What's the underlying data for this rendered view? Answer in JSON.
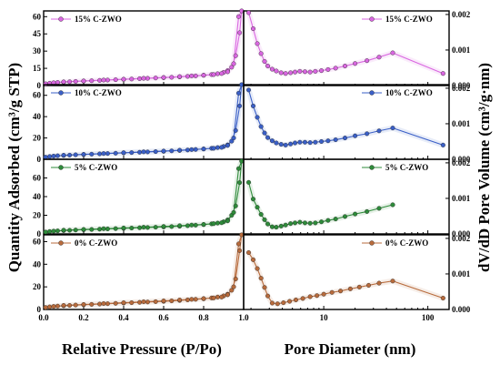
{
  "figure": {
    "left_ylabel": "Quantity Adsorbed (cm³/g STP)",
    "right_ylabel": "dV/dD Pore Volume (cm³/g·nm)",
    "left_xlabel": "Relative Pressure (P/Po)",
    "right_xlabel": "Pore Diameter (nm)"
  },
  "chart_data": [
    {
      "type": "line",
      "panel": "isotherm",
      "row": 0,
      "series": [
        {
          "name": "15% C-ZWO",
          "color": "#d966e0",
          "x": [
            0.01,
            0.03,
            0.05,
            0.07,
            0.1,
            0.13,
            0.16,
            0.2,
            0.24,
            0.28,
            0.32,
            0.36,
            0.4,
            0.44,
            0.48,
            0.52,
            0.56,
            0.6,
            0.64,
            0.68,
            0.72,
            0.76,
            0.8,
            0.84,
            0.87,
            0.9,
            0.92,
            0.94,
            0.96,
            0.98,
            0.99,
            0.975,
            0.95,
            0.92,
            0.89,
            0.85,
            0.8,
            0.74,
            0.68,
            0.6,
            0.5,
            0.4,
            0.3,
            0.2,
            0.1
          ],
          "y": [
            1.5,
            2,
            2.4,
            2.7,
            3,
            3.3,
            3.6,
            3.9,
            4.2,
            4.5,
            4.8,
            5.1,
            5.4,
            5.7,
            6,
            6.3,
            6.6,
            6.9,
            7.2,
            7.6,
            8,
            8.4,
            9,
            9.6,
            10.3,
            11.5,
            13,
            16,
            26,
            46,
            65,
            60,
            19,
            12,
            10.5,
            9.6,
            9,
            8.4,
            7.8,
            7,
            6.3,
            5.5,
            4.8,
            4,
            3.2
          ]
        }
      ],
      "xlim": [
        0,
        1.0
      ],
      "ylim": [
        0,
        65
      ],
      "yticks": [
        0,
        15,
        30,
        45,
        60
      ]
    },
    {
      "type": "line",
      "panel": "isotherm",
      "row": 1,
      "series": [
        {
          "name": "10% C-ZWO",
          "color": "#3a5fc7",
          "x": [
            0.01,
            0.03,
            0.05,
            0.07,
            0.1,
            0.13,
            0.16,
            0.2,
            0.24,
            0.28,
            0.32,
            0.36,
            0.4,
            0.44,
            0.48,
            0.52,
            0.56,
            0.6,
            0.64,
            0.68,
            0.72,
            0.76,
            0.8,
            0.84,
            0.87,
            0.9,
            0.92,
            0.94,
            0.96,
            0.98,
            0.99,
            0.975,
            0.95,
            0.92,
            0.89,
            0.85,
            0.8,
            0.74,
            0.68,
            0.6,
            0.5,
            0.4,
            0.3,
            0.2,
            0.1
          ],
          "y": [
            2,
            2.6,
            3,
            3.3,
            3.6,
            3.9,
            4.2,
            4.5,
            4.8,
            5.1,
            5.4,
            5.7,
            6,
            6.3,
            6.6,
            6.9,
            7.2,
            7.5,
            7.9,
            8.3,
            8.7,
            9.2,
            9.7,
            10.3,
            11,
            12,
            13.5,
            17,
            27,
            50,
            70,
            62,
            20,
            13,
            11.2,
            10.3,
            9.7,
            9.1,
            8.5,
            7.7,
            7,
            6.2,
            5.4,
            4.6,
            3.8
          ]
        }
      ],
      "xlim": [
        0,
        1.0
      ],
      "ylim": [
        0,
        70
      ],
      "yticks": [
        0,
        20,
        40,
        60
      ]
    },
    {
      "type": "line",
      "panel": "isotherm",
      "row": 2,
      "series": [
        {
          "name": "5% C-ZWO",
          "color": "#2e8b3a",
          "x": [
            0.01,
            0.03,
            0.05,
            0.07,
            0.1,
            0.13,
            0.16,
            0.2,
            0.24,
            0.28,
            0.32,
            0.36,
            0.4,
            0.44,
            0.48,
            0.52,
            0.56,
            0.6,
            0.64,
            0.68,
            0.72,
            0.76,
            0.8,
            0.84,
            0.87,
            0.9,
            0.92,
            0.94,
            0.96,
            0.98,
            0.99,
            0.975,
            0.95,
            0.92,
            0.89,
            0.85,
            0.8,
            0.74,
            0.68,
            0.6,
            0.5,
            0.4,
            0.3,
            0.2,
            0.1
          ],
          "y": [
            2,
            2.6,
            3,
            3.3,
            3.6,
            3.9,
            4.2,
            4.5,
            4.8,
            5.1,
            5.4,
            5.7,
            6,
            6.3,
            6.6,
            6.9,
            7.2,
            7.5,
            7.9,
            8.3,
            8.8,
            9.4,
            10,
            10.8,
            11.6,
            13,
            15,
            20,
            30,
            55,
            78,
            70,
            23,
            14,
            12,
            11,
            10.2,
            9.5,
            8.8,
            8,
            7.2,
            6.4,
            5.6,
            4.8,
            4
          ]
        }
      ],
      "xlim": [
        0,
        1.0
      ],
      "ylim": [
        0,
        80
      ],
      "yticks": [
        0,
        20,
        40,
        60
      ]
    },
    {
      "type": "line",
      "panel": "isotherm",
      "row": 3,
      "series": [
        {
          "name": "0% C-ZWO",
          "color": "#b86b3c",
          "x": [
            0.01,
            0.03,
            0.05,
            0.07,
            0.1,
            0.13,
            0.16,
            0.2,
            0.24,
            0.28,
            0.32,
            0.36,
            0.4,
            0.44,
            0.48,
            0.52,
            0.56,
            0.6,
            0.64,
            0.68,
            0.72,
            0.76,
            0.8,
            0.84,
            0.87,
            0.9,
            0.92,
            0.94,
            0.96,
            0.98,
            0.99,
            0.975,
            0.95,
            0.92,
            0.89,
            0.85,
            0.8,
            0.74,
            0.68,
            0.6,
            0.5,
            0.4,
            0.3,
            0.2,
            0.1
          ],
          "y": [
            1.8,
            2.3,
            2.7,
            3,
            3.3,
            3.6,
            3.9,
            4.2,
            4.5,
            4.8,
            5.1,
            5.4,
            5.7,
            6,
            6.3,
            6.6,
            6.9,
            7.2,
            7.6,
            8,
            8.5,
            9,
            9.5,
            10.2,
            11,
            12,
            13.5,
            17,
            27,
            52,
            66,
            58,
            20,
            13,
            11,
            10.2,
            9.6,
            9,
            8.4,
            7.6,
            6.8,
            6,
            5.2,
            4.4,
            3.6
          ]
        }
      ],
      "xlim": [
        0,
        1.0
      ],
      "ylim": [
        0,
        66
      ],
      "yticks": [
        0,
        20,
        40,
        60
      ]
    },
    {
      "type": "line",
      "panel": "pore",
      "row": 0,
      "series": [
        {
          "name": "15% C-ZWO",
          "color": "#d966e0",
          "x": [
            1.9,
            2.1,
            2.3,
            2.5,
            2.7,
            2.9,
            3.2,
            3.5,
            3.9,
            4.3,
            4.8,
            5.3,
            5.9,
            6.6,
            7.4,
            8.3,
            9.5,
            11,
            13,
            16,
            20,
            26,
            34,
            46,
            140
          ],
          "y": [
            0.00205,
            0.0016,
            0.00118,
            0.0009,
            0.00068,
            0.00055,
            0.00046,
            0.00041,
            0.00036,
            0.00034,
            0.00036,
            0.00038,
            0.0004,
            0.00039,
            0.00038,
            0.0004,
            0.00042,
            0.00045,
            0.00049,
            0.00055,
            0.00062,
            0.0007,
            0.0008,
            0.00092,
            0.00034
          ]
        }
      ],
      "xlim": [
        1.7,
        160
      ],
      "ylim": [
        0,
        0.0021
      ],
      "yticks": [
        0,
        0.001,
        0.002
      ],
      "xscale": "log",
      "xticks": [
        10,
        100
      ]
    },
    {
      "type": "line",
      "panel": "pore",
      "row": 1,
      "series": [
        {
          "name": "10% C-ZWO",
          "color": "#3a5fc7",
          "x": [
            1.9,
            2.1,
            2.3,
            2.5,
            2.7,
            2.9,
            3.2,
            3.5,
            3.9,
            4.3,
            4.8,
            5.3,
            5.9,
            6.6,
            7.4,
            8.3,
            9.5,
            11,
            13,
            16,
            20,
            26,
            34,
            46,
            140
          ],
          "y": [
            0.00195,
            0.0015,
            0.00118,
            0.00092,
            0.00074,
            0.00061,
            0.00052,
            0.00046,
            0.00042,
            0.0004,
            0.00043,
            0.00046,
            0.00048,
            0.00048,
            0.00047,
            0.00048,
            0.0005,
            0.00052,
            0.00055,
            0.0006,
            0.00066,
            0.00072,
            0.0008,
            0.00088,
            0.0004
          ]
        }
      ],
      "xlim": [
        1.7,
        160
      ],
      "ylim": [
        0,
        0.0021
      ],
      "yticks": [
        0,
        0.001,
        0.002
      ],
      "xscale": "log",
      "xticks": [
        10,
        100
      ]
    },
    {
      "type": "line",
      "panel": "pore",
      "row": 2,
      "series": [
        {
          "name": "5% C-ZWO",
          "color": "#2e8b3a",
          "x": [
            1.9,
            2.1,
            2.3,
            2.5,
            2.7,
            2.9,
            3.2,
            3.5,
            3.9,
            4.3,
            4.8,
            5.3,
            5.9,
            6.6,
            7.4,
            8.3,
            9.5,
            11,
            13,
            16,
            20,
            26,
            34,
            46
          ],
          "y": [
            0.00145,
            0.00098,
            0.00075,
            0.00055,
            0.0004,
            0.00028,
            0.0002,
            0.00019,
            0.00022,
            0.00025,
            0.00029,
            0.00031,
            0.00033,
            0.00031,
            0.0003,
            0.00031,
            0.00034,
            0.00038,
            0.00042,
            0.00049,
            0.00056,
            0.00063,
            0.00072,
            0.00082
          ]
        }
      ],
      "xlim": [
        1.7,
        160
      ],
      "ylim": [
        0,
        0.0021
      ],
      "yticks": [
        0,
        0.001,
        0.002
      ],
      "xscale": "log",
      "xticks": [
        10,
        100
      ]
    },
    {
      "type": "line",
      "panel": "pore",
      "row": 3,
      "series": [
        {
          "name": "0% C-ZWO",
          "color": "#b86b3c",
          "x": [
            1.9,
            2.1,
            2.3,
            2.5,
            2.7,
            2.9,
            3.2,
            3.6,
            4.1,
            4.7,
            5.4,
            6.3,
            7.4,
            8.6,
            10,
            12,
            14.5,
            18,
            22,
            27,
            34,
            46,
            140
          ],
          "y": [
            0.0016,
            0.0014,
            0.00115,
            0.00088,
            0.00062,
            0.00038,
            0.00018,
            0.00016,
            0.00019,
            0.00023,
            0.00027,
            0.00031,
            0.00036,
            0.00039,
            0.00043,
            0.00048,
            0.00052,
            0.00058,
            0.00063,
            0.00068,
            0.00074,
            0.0008,
            0.00032
          ]
        }
      ],
      "xlim": [
        1.7,
        160
      ],
      "ylim": [
        0,
        0.0021
      ],
      "yticks": [
        0,
        0.001,
        0.002
      ],
      "xscale": "log",
      "xticks": [
        10,
        100
      ]
    }
  ],
  "left_xticks": [
    "0.0",
    "0.2",
    "0.4",
    "0.6",
    "0.8",
    "1.0"
  ],
  "right_xticks": [
    "10",
    "100"
  ]
}
